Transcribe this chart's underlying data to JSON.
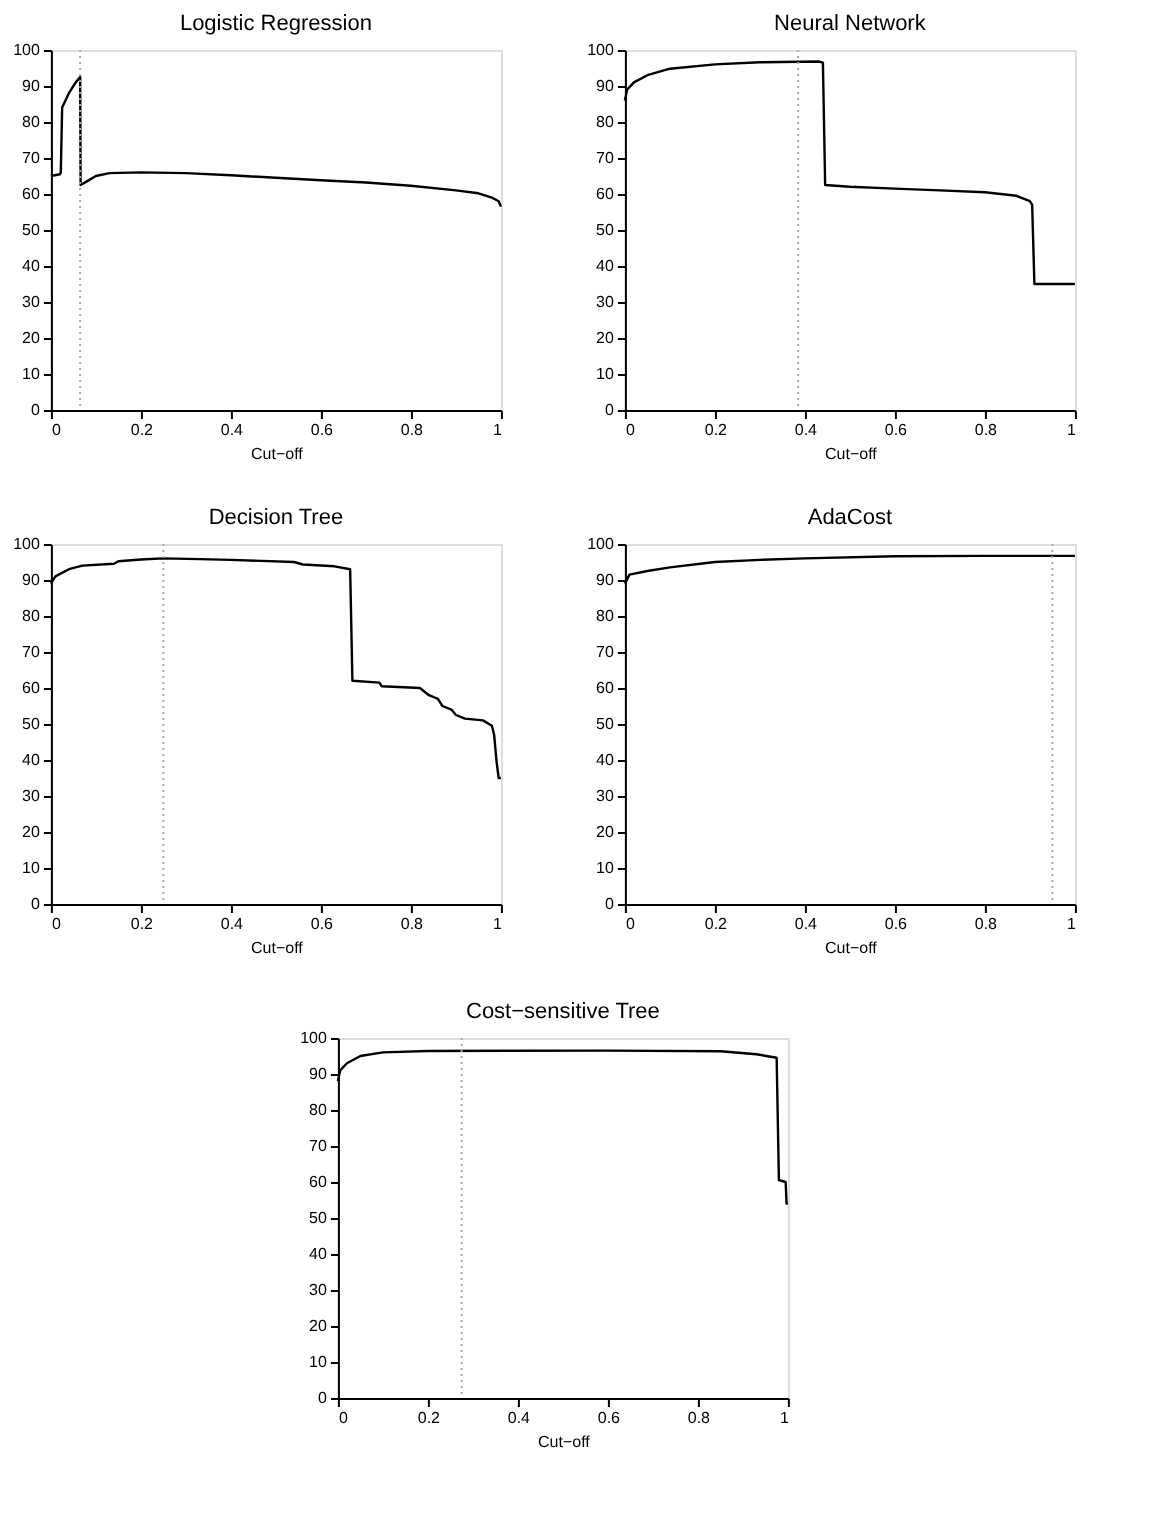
{
  "chart_data": [
    {
      "type": "line",
      "title": "Logistic Regression",
      "xlabel": "Cut−off",
      "xlim": [
        0,
        1
      ],
      "xticks": [
        0,
        0.2,
        0.4,
        0.6,
        0.8,
        1
      ],
      "ylim": [
        0,
        100
      ],
      "yticks": [
        0,
        10,
        20,
        30,
        40,
        50,
        60,
        70,
        80,
        90,
        100
      ],
      "grid": false,
      "series": [
        {
          "color": "#000000",
          "x": [
            0,
            0.02,
            0.022,
            0.025,
            0.04,
            0.055,
            0.065,
            0.066,
            0.08,
            0.1,
            0.13,
            0.2,
            0.3,
            0.4,
            0.5,
            0.6,
            0.7,
            0.8,
            0.9,
            0.95,
            0.98,
            0.995,
            1
          ],
          "values": [
            65,
            65.5,
            66,
            84,
            88,
            91,
            92.5,
            62.5,
            63.5,
            65,
            65.8,
            66,
            65.8,
            65.2,
            64.5,
            63.8,
            63.2,
            62.3,
            61,
            60.2,
            59,
            58,
            56.5
          ]
        }
      ],
      "ref_lines": [
        {
          "axis": "x",
          "value": 0.065,
          "color": "#aaaaaa",
          "line_style": "dotted"
        }
      ]
    },
    {
      "type": "line",
      "title": "Neural Network",
      "xlabel": "Cut−off",
      "xlim": [
        0,
        1
      ],
      "xticks": [
        0,
        0.2,
        0.4,
        0.6,
        0.8,
        1
      ],
      "ylim": [
        0,
        100
      ],
      "yticks": [
        0,
        10,
        20,
        30,
        40,
        50,
        60,
        70,
        80,
        90,
        100
      ],
      "grid": false,
      "series": [
        {
          "color": "#000000",
          "x": [
            0,
            0.005,
            0.02,
            0.05,
            0.1,
            0.2,
            0.3,
            0.43,
            0.44,
            0.445,
            0.5,
            0.6,
            0.7,
            0.8,
            0.87,
            0.9,
            0.905,
            0.91,
            1
          ],
          "values": [
            86,
            89,
            91,
            93,
            94.8,
            96,
            96.6,
            96.8,
            96.5,
            62.5,
            62,
            61.5,
            61,
            60.5,
            59.5,
            58,
            57,
            35,
            35
          ]
        }
      ],
      "ref_lines": [
        {
          "axis": "x",
          "value": 0.385,
          "color": "#aaaaaa",
          "line_style": "dotted"
        }
      ]
    },
    {
      "type": "line",
      "title": "Decision Tree",
      "xlabel": "Cut−off",
      "xlim": [
        0,
        1
      ],
      "xticks": [
        0,
        0.2,
        0.4,
        0.6,
        0.8,
        1
      ],
      "ylim": [
        0,
        100
      ],
      "yticks": [
        0,
        10,
        20,
        30,
        40,
        50,
        60,
        70,
        80,
        90,
        100
      ],
      "grid": false,
      "series": [
        {
          "color": "#000000",
          "x": [
            0,
            0.01,
            0.04,
            0.07,
            0.14,
            0.15,
            0.2,
            0.25,
            0.33,
            0.4,
            0.54,
            0.56,
            0.63,
            0.665,
            0.67,
            0.73,
            0.735,
            0.82,
            0.84,
            0.86,
            0.87,
            0.89,
            0.9,
            0.92,
            0.96,
            0.98,
            0.985,
            0.99,
            0.995,
            1
          ],
          "values": [
            89,
            91,
            93,
            94,
            94.5,
            95.2,
            95.7,
            96,
            95.8,
            95.6,
            95,
            94.3,
            93.8,
            93,
            62,
            61.5,
            60.5,
            60,
            58,
            57,
            55,
            54,
            52.5,
            51.5,
            51,
            49.5,
            47,
            40,
            35,
            35
          ]
        }
      ],
      "ref_lines": [
        {
          "axis": "x",
          "value": 0.25,
          "color": "#aaaaaa",
          "line_style": "dotted"
        }
      ]
    },
    {
      "type": "line",
      "title": "AdaCost",
      "xlabel": "Cut−off",
      "xlim": [
        0,
        1
      ],
      "xticks": [
        0,
        0.2,
        0.4,
        0.6,
        0.8,
        1
      ],
      "ylim": [
        0,
        100
      ],
      "yticks": [
        0,
        10,
        20,
        30,
        40,
        50,
        60,
        70,
        80,
        90,
        100
      ],
      "grid": false,
      "series": [
        {
          "color": "#000000",
          "x": [
            0,
            0.01,
            0.05,
            0.1,
            0.2,
            0.3,
            0.4,
            0.6,
            0.8,
            1
          ],
          "values": [
            89,
            91.5,
            92.5,
            93.5,
            95,
            95.6,
            96,
            96.6,
            96.7,
            96.7
          ]
        }
      ],
      "ref_lines": [
        {
          "axis": "x",
          "value": 0.95,
          "color": "#aaaaaa",
          "line_style": "dotted"
        }
      ]
    },
    {
      "type": "line",
      "title": "Cost−sensitive Tree",
      "xlabel": "Cut−off",
      "xlim": [
        0,
        1
      ],
      "xticks": [
        0,
        0.2,
        0.4,
        0.6,
        0.8,
        1
      ],
      "ylim": [
        0,
        100
      ],
      "yticks": [
        0,
        10,
        20,
        30,
        40,
        50,
        60,
        70,
        80,
        90,
        100
      ],
      "grid": false,
      "series": [
        {
          "color": "#000000",
          "x": [
            0,
            0.005,
            0.02,
            0.05,
            0.1,
            0.2,
            0.6,
            0.85,
            0.93,
            0.975,
            0.98,
            0.995,
            0.997,
            1
          ],
          "values": [
            88,
            91,
            93,
            95,
            96,
            96.4,
            96.5,
            96.3,
            95.5,
            94.5,
            60.5,
            60,
            54,
            54
          ]
        }
      ],
      "ref_lines": [
        {
          "axis": "x",
          "value": 0.275,
          "color": "#aaaaaa",
          "line_style": "dotted"
        }
      ]
    }
  ]
}
